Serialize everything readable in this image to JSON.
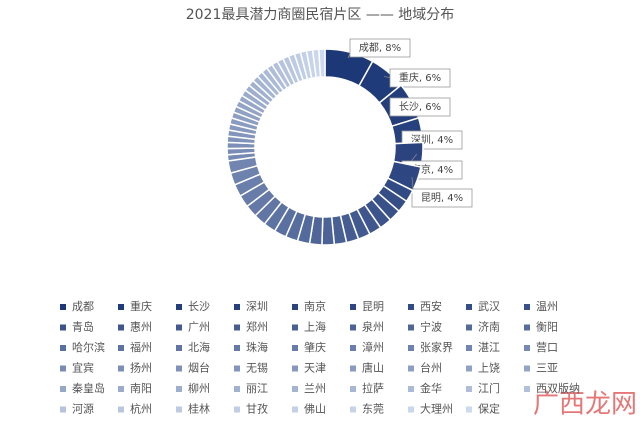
{
  "chart_data": {
    "type": "donut",
    "title": "2021最具潜力商圈民宿片区 —— 地域分布",
    "categories": [
      "成都",
      "重庆",
      "长沙",
      "深圳",
      "南京",
      "昆明",
      "西安",
      "武汉",
      "温州",
      "青岛",
      "惠州",
      "广州",
      "郑州",
      "上海",
      "泉州",
      "宁波",
      "济南",
      "衡阳",
      "哈尔滨",
      "福州",
      "北海",
      "珠海",
      "肇庆",
      "漳州",
      "张家界",
      "湛江",
      "营口",
      "宜宾",
      "扬州",
      "烟台",
      "无锡",
      "天津",
      "唐山",
      "台州",
      "上饶",
      "三亚",
      "秦皇岛",
      "南阳",
      "柳州",
      "丽江",
      "兰州",
      "拉萨",
      "金华",
      "江门",
      "西双版纳",
      "河源",
      "杭州",
      "桂林",
      "甘孜",
      "佛山",
      "东莞",
      "大理州",
      "保定"
    ],
    "values": [
      8,
      6,
      6,
      4,
      4,
      4,
      2,
      2,
      2,
      2,
      2,
      2,
      2,
      2,
      2,
      2,
      2,
      2,
      2,
      2,
      2,
      2,
      2,
      2,
      2,
      2,
      1,
      1,
      1,
      1,
      1,
      1,
      1,
      1,
      1,
      1,
      1,
      1,
      1,
      1,
      1,
      1,
      1,
      1,
      1,
      1,
      1,
      1,
      1,
      1,
      1,
      1,
      1
    ],
    "value_labels": [
      "成都, 8%",
      "重庆, 6%",
      "长沙, 6%",
      "深圳, 4%",
      "南京, 4%",
      "昆明, 4%",
      null,
      null,
      null,
      null,
      null,
      null,
      null,
      null,
      null,
      null,
      null,
      null,
      null,
      null,
      null,
      null,
      null,
      null,
      null,
      null,
      null,
      null,
      null,
      null,
      null,
      null,
      null,
      null,
      null,
      null,
      null,
      null,
      null,
      null,
      null,
      null,
      null,
      null,
      null,
      null,
      null,
      null,
      null,
      null,
      null,
      null,
      null
    ],
    "colors": [
      "#1d3877",
      "#cdd9ee"
    ],
    "legend": "bottom",
    "watermark": "广西龙网"
  }
}
